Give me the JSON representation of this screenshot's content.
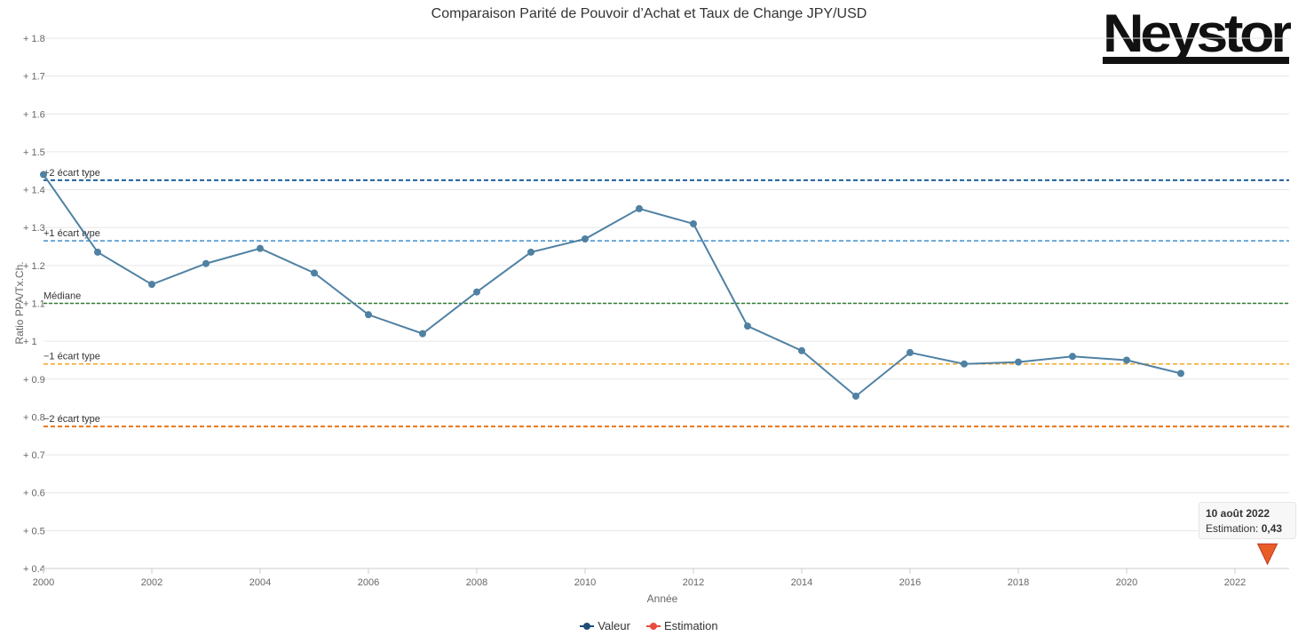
{
  "title": "Comparaison Parité de Pouvoir d’Achat et Taux de Change JPY/USD",
  "logo": {
    "text": "Neystor"
  },
  "chart_data": {
    "type": "line",
    "title": "Comparaison Parité de Pouvoir d’Achat et Taux de Change JPY/USD",
    "xlabel": "Année",
    "ylabel": "Ratio PPA/Tx.Ch.",
    "xlim": [
      2000,
      2023
    ],
    "ylim": [
      0.4,
      1.8
    ],
    "x_ticks": [
      "2000",
      "2002",
      "2004",
      "2006",
      "2008",
      "2010",
      "2012",
      "2014",
      "2016",
      "2018",
      "2020",
      "2022"
    ],
    "y_ticks": [
      "0.4",
      "0.5",
      "0.6",
      "0.7",
      "0.8",
      "0.9",
      "1",
      "1.1",
      "1.2",
      "1.3",
      "1.4",
      "1.5",
      "1.6",
      "1.7",
      "1.8"
    ],
    "grid": true,
    "legend_position": "bottom-center",
    "series": [
      {
        "name": "Valeur",
        "color": "#4f81a3",
        "legend_color": "#1f4e79",
        "x": [
          2000,
          2001,
          2002,
          2003,
          2004,
          2005,
          2006,
          2007,
          2008,
          2009,
          2010,
          2011,
          2012,
          2013,
          2014,
          2015,
          2016,
          2017,
          2018,
          2019,
          2020,
          2021
        ],
        "values": [
          1.44,
          1.235,
          1.15,
          1.205,
          1.245,
          1.18,
          1.07,
          1.02,
          1.13,
          1.235,
          1.27,
          1.35,
          1.31,
          1.04,
          0.975,
          0.855,
          0.97,
          0.94,
          0.945,
          0.96,
          0.95,
          0.915
        ]
      },
      {
        "name": "Estimation",
        "color": "#e85d26",
        "legend_color": "#e74c3c",
        "x": [
          2022.6
        ],
        "values": [
          0.43
        ]
      }
    ],
    "reference_lines": [
      {
        "label": "+2 écart type",
        "value": 1.425,
        "color": "#1f5f99"
      },
      {
        "label": "+1 écart type",
        "value": 1.265,
        "color": "#3e8ecb"
      },
      {
        "label": "Médiane",
        "value": 1.1,
        "color": "#2e7d32"
      },
      {
        "label": "−1 écart type",
        "value": 0.94,
        "color": "#f5a623"
      },
      {
        "label": "−2 écart type",
        "value": 0.775,
        "color": "#e8761a"
      }
    ],
    "tooltip": {
      "date": "10 août 2022",
      "label": "Estimation:",
      "value": "0,43"
    }
  }
}
